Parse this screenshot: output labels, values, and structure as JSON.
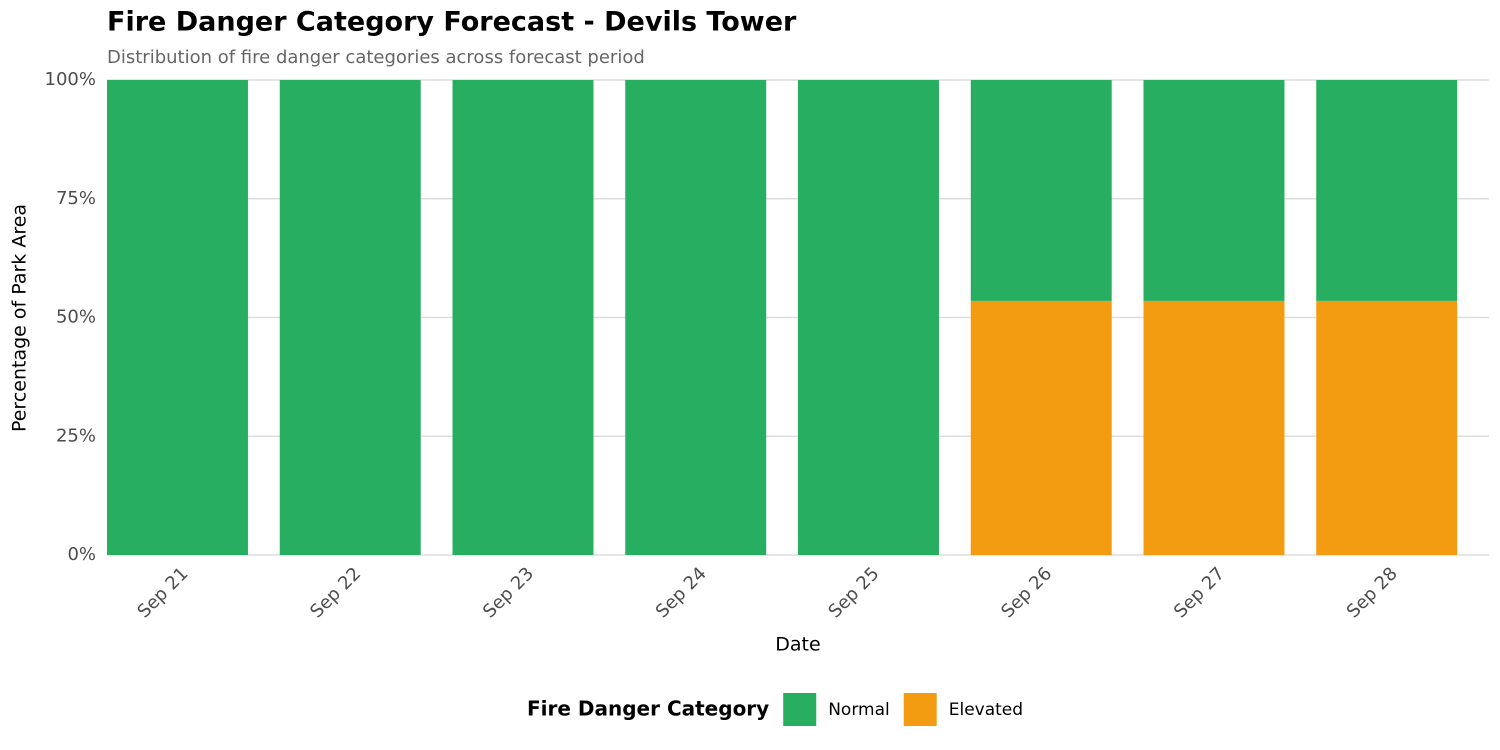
{
  "chart_data": {
    "type": "stacked_bar",
    "title": "Fire Danger Category Forecast - Devils Tower",
    "subtitle": "Distribution of fire danger categories across forecast period",
    "x_label": "Date",
    "y_label": "Percentage of Park Area",
    "legend_title": "Fire Danger Category",
    "legend_position": "bottom",
    "grid": true,
    "categories": [
      "Sep 21",
      "Sep 22",
      "Sep 23",
      "Sep 24",
      "Sep 25",
      "Sep 26",
      "Sep 27",
      "Sep 28"
    ],
    "series": [
      {
        "name": "Normal",
        "color": "#27ae60",
        "values": [
          100,
          100,
          100,
          100,
          100,
          46.5,
          46.5,
          46.5
        ]
      },
      {
        "name": "Elevated",
        "color": "#f39c12",
        "values": [
          0,
          0,
          0,
          0,
          0,
          53.5,
          53.5,
          53.5
        ]
      }
    ],
    "ylim": [
      0,
      100
    ],
    "yticks": [
      {
        "value": 0,
        "label": "0%"
      },
      {
        "value": 25,
        "label": "25%"
      },
      {
        "value": 50,
        "label": "50%"
      },
      {
        "value": 75,
        "label": "75%"
      },
      {
        "value": 100,
        "label": "100%"
      }
    ]
  }
}
